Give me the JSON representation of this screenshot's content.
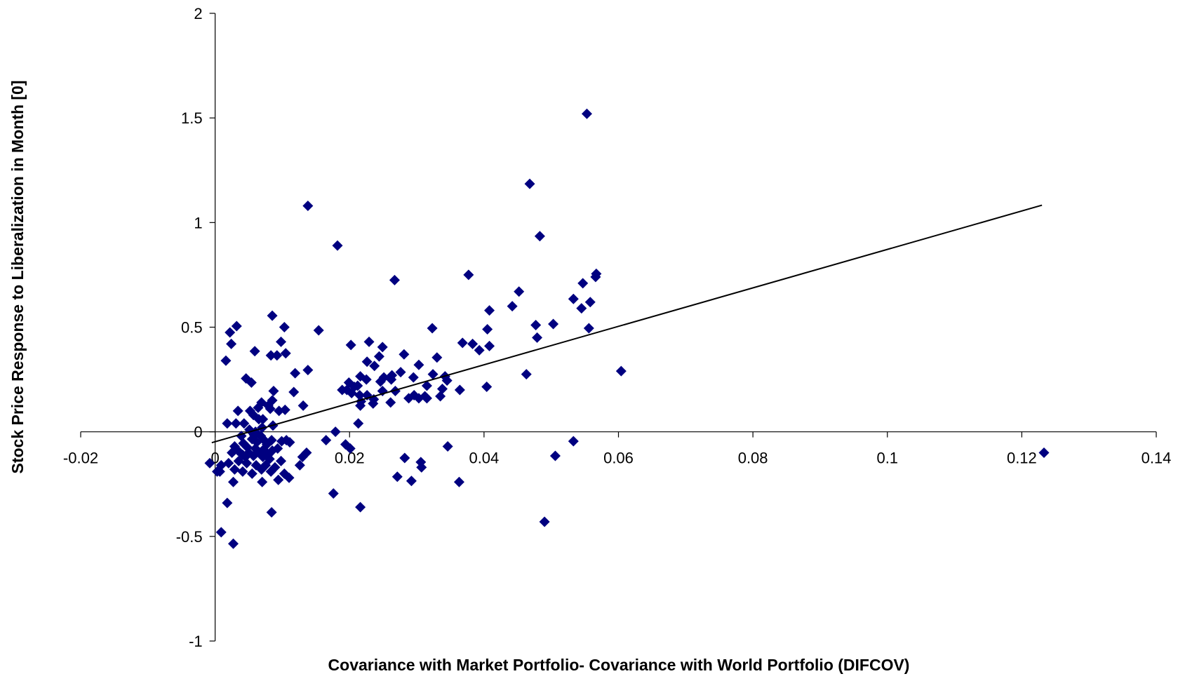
{
  "chart_data": {
    "type": "scatter",
    "title": "",
    "xlabel": "Covariance with Market Portfolio- Covariance with World Portfolio (DIFCOV)",
    "ylabel": "Stock Price Response to Liberalization in Month [0]",
    "xlim": [
      -0.02,
      0.14
    ],
    "ylim": [
      -1,
      2
    ],
    "x_ticks": [
      -0.02,
      0,
      0.02,
      0.04,
      0.06,
      0.08,
      0.1,
      0.12,
      0.14
    ],
    "x_tick_labels": [
      "-0.02",
      "0",
      "0.02",
      "0.04",
      "0.06",
      "0.08",
      "0.1",
      "0.12",
      "0.14"
    ],
    "y_ticks": [
      -1,
      -0.5,
      0,
      0.5,
      1,
      1.5,
      2
    ],
    "y_tick_labels": [
      "-1",
      "-0.5",
      "0",
      "0.5",
      "1",
      "1.5",
      "2"
    ],
    "grid": false,
    "legend": "none",
    "marker_color": "#000080",
    "line_color": "#000000",
    "trendline": {
      "x": [
        -0.0005,
        0.123
      ],
      "y": [
        -0.052,
        1.083
      ]
    },
    "points": [
      [
        0.0138,
        1.08
      ],
      [
        0.0553,
        1.52
      ],
      [
        0.0468,
        1.185
      ],
      [
        0.0483,
        0.935
      ],
      [
        0.0182,
        0.89
      ],
      [
        0.0567,
        0.755
      ],
      [
        0.0566,
        0.74
      ],
      [
        0.0377,
        0.75
      ],
      [
        0.0267,
        0.725
      ],
      [
        0.0547,
        0.71
      ],
      [
        0.0452,
        0.67
      ],
      [
        0.0533,
        0.635
      ],
      [
        0.0558,
        0.62
      ],
      [
        0.0545,
        0.59
      ],
      [
        0.0442,
        0.6
      ],
      [
        0.0408,
        0.58
      ],
      [
        0.0085,
        0.555
      ],
      [
        0.0503,
        0.515
      ],
      [
        0.0477,
        0.51
      ],
      [
        0.0556,
        0.495
      ],
      [
        0.0323,
        0.495
      ],
      [
        0.0405,
        0.49
      ],
      [
        0.0154,
        0.485
      ],
      [
        0.0103,
        0.5
      ],
      [
        0.0032,
        0.505
      ],
      [
        0.0022,
        0.475
      ],
      [
        0.0024,
        0.42
      ],
      [
        0.0479,
        0.45
      ],
      [
        0.0368,
        0.425
      ],
      [
        0.0383,
        0.42
      ],
      [
        0.0098,
        0.43
      ],
      [
        0.0229,
        0.43
      ],
      [
        0.0202,
        0.415
      ],
      [
        0.0408,
        0.41
      ],
      [
        0.0393,
        0.39
      ],
      [
        0.0249,
        0.405
      ],
      [
        0.0059,
        0.385
      ],
      [
        0.0105,
        0.375
      ],
      [
        0.0083,
        0.365
      ],
      [
        0.0092,
        0.365
      ],
      [
        0.0281,
        0.37
      ],
      [
        0.033,
        0.355
      ],
      [
        0.0244,
        0.36
      ],
      [
        0.0016,
        0.34
      ],
      [
        0.0226,
        0.335
      ],
      [
        0.0237,
        0.315
      ],
      [
        0.0303,
        0.32
      ],
      [
        0.0138,
        0.295
      ],
      [
        0.0604,
        0.29
      ],
      [
        0.0463,
        0.275
      ],
      [
        0.0324,
        0.275
      ],
      [
        0.0119,
        0.28
      ],
      [
        0.0276,
        0.285
      ],
      [
        0.0263,
        0.27
      ],
      [
        0.0216,
        0.265
      ],
      [
        0.0295,
        0.26
      ],
      [
        0.0342,
        0.265
      ],
      [
        0.0251,
        0.26
      ],
      [
        0.0046,
        0.255
      ],
      [
        0.0054,
        0.235
      ],
      [
        0.0262,
        0.25
      ],
      [
        0.0345,
        0.245
      ],
      [
        0.0225,
        0.25
      ],
      [
        0.0246,
        0.24
      ],
      [
        0.0189,
        0.2
      ],
      [
        0.0207,
        0.215
      ],
      [
        0.0199,
        0.235
      ],
      [
        0.0212,
        0.22
      ],
      [
        0.0364,
        0.2
      ],
      [
        0.0404,
        0.215
      ],
      [
        0.0315,
        0.22
      ],
      [
        0.0338,
        0.205
      ],
      [
        0.0268,
        0.195
      ],
      [
        0.0196,
        0.2
      ],
      [
        0.0203,
        0.185
      ],
      [
        0.0117,
        0.19
      ],
      [
        0.0087,
        0.195
      ],
      [
        0.0215,
        0.175
      ],
      [
        0.0226,
        0.175
      ],
      [
        0.0249,
        0.195
      ],
      [
        0.0296,
        0.175
      ],
      [
        0.0312,
        0.17
      ],
      [
        0.0335,
        0.17
      ],
      [
        0.0288,
        0.16
      ],
      [
        0.0303,
        0.16
      ],
      [
        0.0315,
        0.16
      ],
      [
        0.0236,
        0.155
      ],
      [
        0.0217,
        0.145
      ],
      [
        0.0216,
        0.125
      ],
      [
        0.0235,
        0.135
      ],
      [
        0.0261,
        0.14
      ],
      [
        0.0085,
        0.15
      ],
      [
        0.0069,
        0.14
      ],
      [
        0.0079,
        0.125
      ],
      [
        0.0131,
        0.125
      ],
      [
        0.0082,
        0.11
      ],
      [
        0.0095,
        0.1
      ],
      [
        0.0064,
        0.115
      ],
      [
        0.0052,
        0.1
      ],
      [
        0.0034,
        0.1
      ],
      [
        0.0104,
        0.105
      ],
      [
        0.0057,
        0.08
      ],
      [
        0.0018,
        0.04
      ],
      [
        0.0031,
        0.04
      ],
      [
        0.0213,
        0.04
      ],
      [
        0.0043,
        0.04
      ],
      [
        0.0065,
        0.06
      ],
      [
        0.0071,
        0.06
      ],
      [
        0.0051,
        0.01
      ],
      [
        0.006,
        0.0
      ],
      [
        0.007,
        0.02
      ],
      [
        0.0086,
        0.03
      ],
      [
        0.0058,
        -0.015
      ],
      [
        0.0068,
        -0.02
      ],
      [
        0.0039,
        -0.02
      ],
      [
        0.0055,
        -0.035
      ],
      [
        0.0073,
        -0.04
      ],
      [
        0.0084,
        -0.04
      ],
      [
        0.0099,
        -0.045
      ],
      [
        0.0106,
        -0.04
      ],
      [
        0.0111,
        -0.05
      ],
      [
        0.0042,
        -0.055
      ],
      [
        0.0062,
        -0.05
      ],
      [
        0.0077,
        -0.06
      ],
      [
        0.0029,
        -0.07
      ],
      [
        0.0048,
        -0.075
      ],
      [
        0.006,
        -0.08
      ],
      [
        0.0072,
        -0.085
      ],
      [
        0.0085,
        -0.09
      ],
      [
        0.0093,
        -0.08
      ],
      [
        0.0034,
        -0.09
      ],
      [
        0.005,
        -0.1
      ],
      [
        0.0066,
        -0.1
      ],
      [
        0.0079,
        -0.11
      ],
      [
        0.0025,
        -0.1
      ],
      [
        0.0041,
        -0.11
      ],
      [
        0.0057,
        -0.115
      ],
      [
        0.0071,
        -0.12
      ],
      [
        0.013,
        -0.12
      ],
      [
        0.0136,
        -0.1
      ],
      [
        0.0179,
        0.0
      ],
      [
        0.0165,
        -0.04
      ],
      [
        0.0194,
        -0.06
      ],
      [
        0.0201,
        -0.08
      ],
      [
        0.0346,
        -0.07
      ],
      [
        0.0035,
        -0.14
      ],
      [
        0.0047,
        -0.15
      ],
      [
        0.0061,
        -0.16
      ],
      [
        0.0075,
        -0.16
      ],
      [
        0.0089,
        -0.17
      ],
      [
        0.0098,
        -0.14
      ],
      [
        0.002,
        -0.15
      ],
      [
        0.0009,
        -0.16
      ],
      [
        -0.0008,
        -0.15
      ],
      [
        0.0029,
        -0.18
      ],
      [
        0.0041,
        -0.19
      ],
      [
        0.0055,
        -0.2
      ],
      [
        0.0069,
        -0.18
      ],
      [
        0.0083,
        -0.19
      ],
      [
        0.0126,
        -0.16
      ],
      [
        0.011,
        -0.22
      ],
      [
        0.0094,
        -0.23
      ],
      [
        0.007,
        -0.24
      ],
      [
        0.0103,
        -0.2
      ],
      [
        0.0027,
        -0.24
      ],
      [
        0.0003,
        -0.19
      ],
      [
        0.0282,
        -0.125
      ],
      [
        0.0306,
        -0.145
      ],
      [
        0.0307,
        -0.17
      ],
      [
        0.0271,
        -0.215
      ],
      [
        0.0292,
        -0.235
      ],
      [
        0.0363,
        -0.24
      ],
      [
        0.0506,
        -0.115
      ],
      [
        0.0533,
        -0.045
      ],
      [
        0.0018,
        -0.34
      ],
      [
        0.0176,
        -0.295
      ],
      [
        0.0216,
        -0.36
      ],
      [
        0.0084,
        -0.385
      ],
      [
        0.049,
        -0.43
      ],
      [
        0.0009,
        -0.48
      ],
      [
        0.0027,
        -0.535
      ],
      [
        0.1233,
        -0.1
      ],
      [
        0.0007,
        -0.19
      ],
      [
        0.0045,
        -0.12
      ],
      [
        0.0081,
        -0.13
      ]
    ]
  }
}
